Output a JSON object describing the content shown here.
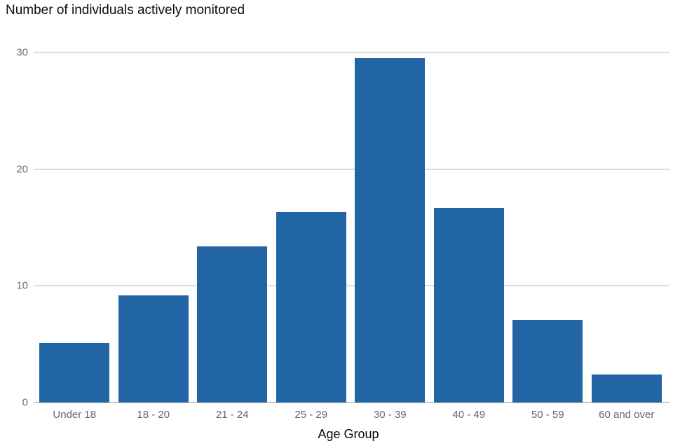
{
  "chart_data": {
    "type": "bar",
    "title": "Number of individuals actively monitored",
    "xlabel": "Age Group",
    "ylabel": "",
    "categories": [
      "Under 18",
      "18 - 20",
      "21 - 24",
      "25 - 29",
      "30 - 39",
      "40 - 49",
      "50 - 59",
      "60 and over"
    ],
    "values": [
      5.1,
      9.2,
      13.4,
      16.3,
      29.5,
      16.7,
      7.1,
      2.4
    ],
    "yticks": [
      0,
      10,
      20,
      30
    ],
    "ylim": [
      0,
      30.9
    ],
    "grid": "horizontal",
    "legend_position": "none",
    "bar_color": "#2165a4",
    "grid_color": "#dcdcdc",
    "baseline_color": "#c8c8c8",
    "ytick_color": "#6e6e6e",
    "xtick_color": "#666666",
    "title_color": "#0b0c0c",
    "xlabel_color": "#0b0c0c"
  }
}
